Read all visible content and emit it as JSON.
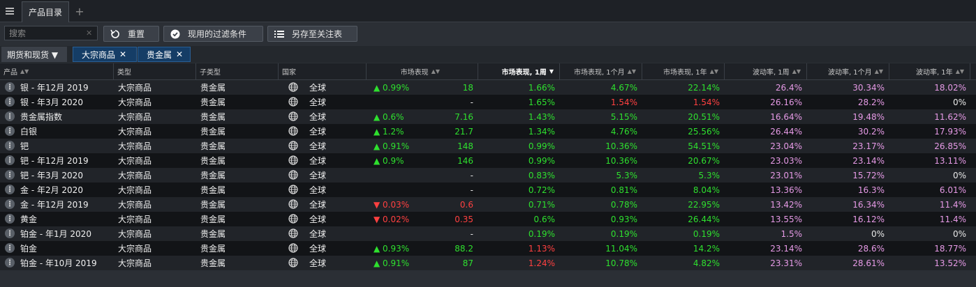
{
  "tabs": {
    "menu_icon": "menu-icon",
    "active": "产品目录",
    "add": "+"
  },
  "toolbar": {
    "search_placeholder": "搜索",
    "clear": "✕",
    "reset": "重置",
    "active_filters": "现用的过滤条件",
    "save_watchlist": "另存至关注表"
  },
  "filters": {
    "select": "期货和现货 ▼",
    "chips": [
      {
        "label": "大宗商品",
        "remove": "✕"
      },
      {
        "label": "贵金属",
        "remove": "✕"
      }
    ]
  },
  "columns": {
    "product": "产品",
    "type": "类型",
    "subtype": "子类型",
    "country": "国家",
    "market": "市场表现",
    "perf_1w": "市场表现, 1周",
    "perf_1m": "市场表现, 1个月",
    "perf_1y": "市场表现, 1年",
    "vol_1w": "波动率, 1周",
    "vol_1m": "波动率, 1个月",
    "vol_1y": "波动率, 1年"
  },
  "colors": {
    "up": "#2ee02e",
    "down": "#ff4040",
    "vol": "#e69ae6"
  },
  "rows": [
    {
      "name": "银 - 年12月 2019",
      "type": "大宗商品",
      "subtype": "贵金属",
      "country": "全球",
      "chg": "▲ 0.99%",
      "dir": "up",
      "val": "18",
      "w": "1.66%",
      "wd": "up",
      "m": "4.67%",
      "md": "up",
      "y": "22.14%",
      "yd": "up",
      "v1": "26.4%",
      "v2": "30.34%",
      "v3": "18.02%",
      "v3c": "pink"
    },
    {
      "name": "银 - 年3月 2020",
      "type": "大宗商品",
      "subtype": "贵金属",
      "country": "全球",
      "chg": "",
      "dir": "none",
      "val": "-",
      "w": "1.65%",
      "wd": "up",
      "m": "1.54%",
      "md": "down",
      "y": "1.54%",
      "yd": "down",
      "v1": "26.16%",
      "v2": "28.2%",
      "v3": "0%",
      "v3c": "white"
    },
    {
      "name": "贵金属指数",
      "type": "大宗商品",
      "subtype": "贵金属",
      "country": "全球",
      "chg": "▲ 0.6%",
      "dir": "up",
      "val": "7.16",
      "w": "1.43%",
      "wd": "up",
      "m": "5.15%",
      "md": "up",
      "y": "20.51%",
      "yd": "up",
      "v1": "16.64%",
      "v2": "19.48%",
      "v3": "11.62%",
      "v3c": "pink"
    },
    {
      "name": "白银",
      "type": "大宗商品",
      "subtype": "贵金属",
      "country": "全球",
      "chg": "▲ 1.2%",
      "dir": "up",
      "val": "21.7",
      "w": "1.34%",
      "wd": "up",
      "m": "4.76%",
      "md": "up",
      "y": "25.56%",
      "yd": "up",
      "v1": "26.44%",
      "v2": "30.2%",
      "v3": "17.93%",
      "v3c": "pink"
    },
    {
      "name": "钯",
      "type": "大宗商品",
      "subtype": "贵金属",
      "country": "全球",
      "chg": "▲ 0.91%",
      "dir": "up",
      "val": "148",
      "w": "0.99%",
      "wd": "up",
      "m": "10.36%",
      "md": "up",
      "y": "54.51%",
      "yd": "up",
      "v1": "23.04%",
      "v2": "23.17%",
      "v3": "26.85%",
      "v3c": "pink"
    },
    {
      "name": "钯 - 年12月 2019",
      "type": "大宗商品",
      "subtype": "贵金属",
      "country": "全球",
      "chg": "▲ 0.9%",
      "dir": "up",
      "val": "146",
      "w": "0.99%",
      "wd": "up",
      "m": "10.36%",
      "md": "up",
      "y": "20.67%",
      "yd": "up",
      "v1": "23.03%",
      "v2": "23.14%",
      "v3": "13.11%",
      "v3c": "pink"
    },
    {
      "name": "钯 - 年3月 2020",
      "type": "大宗商品",
      "subtype": "贵金属",
      "country": "全球",
      "chg": "",
      "dir": "none",
      "val": "-",
      "w": "0.83%",
      "wd": "up",
      "m": "5.3%",
      "md": "up",
      "y": "5.3%",
      "yd": "up",
      "v1": "23.01%",
      "v2": "15.72%",
      "v3": "0%",
      "v3c": "white"
    },
    {
      "name": "金 - 年2月 2020",
      "type": "大宗商品",
      "subtype": "贵金属",
      "country": "全球",
      "chg": "",
      "dir": "none",
      "val": "-",
      "w": "0.72%",
      "wd": "up",
      "m": "0.81%",
      "md": "up",
      "y": "8.04%",
      "yd": "up",
      "v1": "13.36%",
      "v2": "16.3%",
      "v3": "6.01%",
      "v3c": "pink"
    },
    {
      "name": "金 - 年12月 2019",
      "type": "大宗商品",
      "subtype": "贵金属",
      "country": "全球",
      "chg": "▼ 0.03%",
      "dir": "down",
      "val": "0.6",
      "w": "0.71%",
      "wd": "up",
      "m": "0.78%",
      "md": "up",
      "y": "22.95%",
      "yd": "up",
      "v1": "13.42%",
      "v2": "16.34%",
      "v3": "11.4%",
      "v3c": "pink"
    },
    {
      "name": "黄金",
      "type": "大宗商品",
      "subtype": "贵金属",
      "country": "全球",
      "chg": "▼ 0.02%",
      "dir": "down",
      "val": "0.35",
      "w": "0.6%",
      "wd": "up",
      "m": "0.93%",
      "md": "up",
      "y": "26.44%",
      "yd": "up",
      "v1": "13.55%",
      "v2": "16.12%",
      "v3": "11.4%",
      "v3c": "pink"
    },
    {
      "name": "铂金 - 年1月 2020",
      "type": "大宗商品",
      "subtype": "贵金属",
      "country": "全球",
      "chg": "",
      "dir": "none",
      "val": "-",
      "w": "0.19%",
      "wd": "up",
      "m": "0.19%",
      "md": "up",
      "y": "0.19%",
      "yd": "up",
      "v1": "1.5%",
      "v2": "0%",
      "v3": "0%",
      "v3c": "white"
    },
    {
      "name": "铂金",
      "type": "大宗商品",
      "subtype": "贵金属",
      "country": "全球",
      "chg": "▲ 0.93%",
      "dir": "up",
      "val": "88.2",
      "w": "1.13%",
      "wd": "down",
      "m": "11.04%",
      "md": "up",
      "y": "14.2%",
      "yd": "up",
      "v1": "23.14%",
      "v2": "28.6%",
      "v3": "18.77%",
      "v3c": "pink"
    },
    {
      "name": "铂金 - 年10月 2019",
      "type": "大宗商品",
      "subtype": "贵金属",
      "country": "全球",
      "chg": "▲ 0.91%",
      "dir": "up",
      "val": "87",
      "w": "1.24%",
      "wd": "down",
      "m": "10.78%",
      "md": "up",
      "y": "4.82%",
      "yd": "up",
      "v1": "23.31%",
      "v2": "28.61%",
      "v3": "13.52%",
      "v3c": "pink"
    }
  ]
}
